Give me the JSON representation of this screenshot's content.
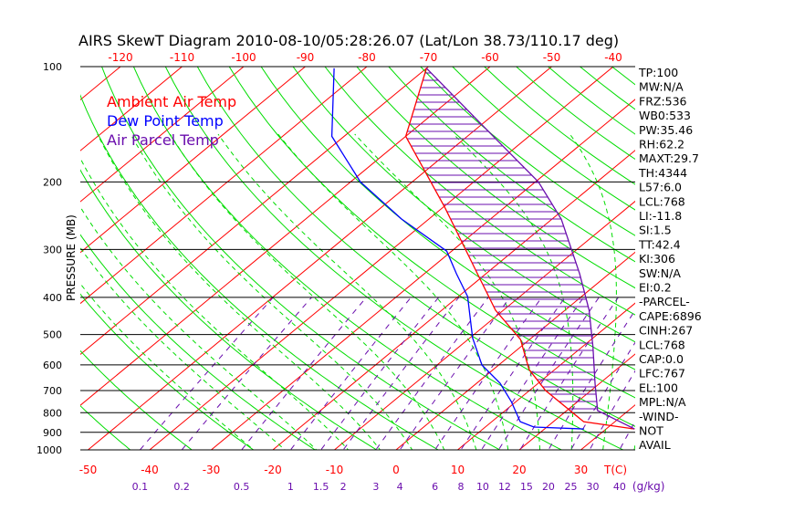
{
  "chart_data": {
    "type": "line",
    "title": "AIRS SkewT Diagram 2010-08-10/05:28:26.07 (Lat/Lon 38.73/110.17 deg)",
    "ylabel": "PRESSURE (MB)",
    "xlabel": "T(C)",
    "mixing_ratio_label": "(g/kg)",
    "pressure_ticks": [
      100,
      200,
      300,
      400,
      500,
      600,
      700,
      800,
      900,
      1000
    ],
    "pressure_range": [
      100,
      1000
    ],
    "top_temp_ticks": [
      -120,
      -110,
      -100,
      -90,
      -80,
      -70,
      -60,
      -50,
      -40
    ],
    "bottom_temp_ticks": [
      -50,
      -40,
      -30,
      -20,
      -10,
      0,
      10,
      20,
      30
    ],
    "mixing_ratio_ticks": [
      "0.1",
      "0.2",
      "0.5",
      "1",
      "1.5",
      "2",
      "3",
      "4",
      "6",
      "8",
      "10",
      "12",
      "15",
      "20",
      "25",
      "30",
      "40"
    ],
    "legend": [
      {
        "label": "Ambient Air Temp",
        "color": "#ff0000"
      },
      {
        "label": "Dew Point Temp",
        "color": "#0000ff"
      },
      {
        "label": "Air Parcel Temp",
        "color": "#6a0dad"
      }
    ],
    "series": [
      {
        "name": "Ambient Air Temp",
        "color": "#ff0000",
        "points": [
          [
            101,
            -70
          ],
          [
            152,
            -60
          ],
          [
            234,
            -39.5
          ],
          [
            347,
            -21.4
          ],
          [
            432,
            -11.3
          ],
          [
            515,
            -1.5
          ],
          [
            617,
            5.8
          ],
          [
            700,
            12.6
          ],
          [
            844,
            24.9
          ],
          [
            882,
            34.6
          ]
        ]
      },
      {
        "name": "Dew Point Temp",
        "color": "#0000ff",
        "points": [
          [
            101,
            -85
          ],
          [
            152,
            -72
          ],
          [
            200,
            -58.4
          ],
          [
            250,
            -44.4
          ],
          [
            303,
            -30.8
          ],
          [
            347,
            -24.8
          ],
          [
            398,
            -18.5
          ],
          [
            510,
            -9.6
          ],
          [
            601,
            -2.7
          ],
          [
            670,
            3.8
          ],
          [
            748,
            9.2
          ],
          [
            844,
            14.6
          ],
          [
            872,
            17.9
          ],
          [
            882,
            26.4
          ]
        ]
      },
      {
        "name": "Air Parcel Temp",
        "color": "#6a0dad",
        "points": [
          [
            101,
            -70
          ],
          [
            152,
            -45.8
          ],
          [
            200,
            -29.5
          ],
          [
            250,
            -18.5
          ],
          [
            347,
            -4.8
          ],
          [
            432,
            3.9
          ],
          [
            538,
            11.7
          ],
          [
            670,
            19.2
          ],
          [
            790,
            25
          ],
          [
            882,
            34.6
          ]
        ]
      }
    ]
  },
  "indices": [
    "TP:100",
    "MW:N/A",
    "FRZ:536",
    "WB0:533",
    "PW:35.46",
    "RH:62.2",
    "MAXT:29.7",
    "TH:4344",
    "L57:6.0",
    "LCL:768",
    "LI:-11.8",
    "SI:1.5",
    "TT:42.4",
    "KI:306",
    "SW:N/A",
    "EI:0.2",
    "-PARCEL-",
    "CAPE:6896",
    "CINH:267",
    "LCL:768",
    "CAP:0.0",
    "LFC:767",
    "EL:100",
    "MPL:N/A",
    "-WIND-",
    "NOT",
    "AVAIL"
  ],
  "colors": {
    "isotherm": "#ff0000",
    "dry_adiabat": "#00dd00",
    "moist_adiabat": "#00dd00",
    "mixing_ratio": "#6a0dad",
    "hatch": "#6a0dad"
  }
}
